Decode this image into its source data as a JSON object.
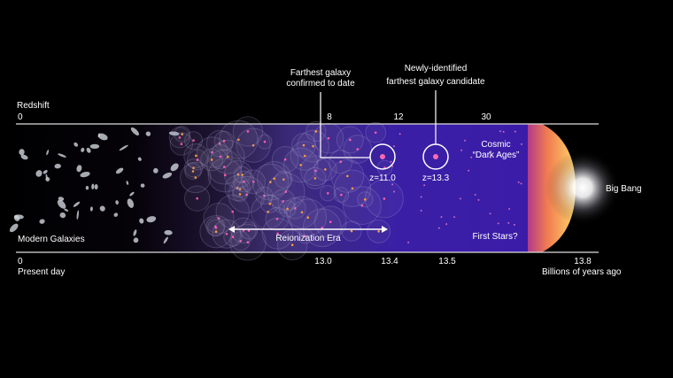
{
  "annotations": {
    "farthest_confirmed": {
      "lines": [
        "Farthest galaxy",
        "confirmed to date"
      ],
      "label": "z=11.0"
    },
    "new_candidate": {
      "lines": [
        "Newly-identified",
        "farthest galaxy candidate"
      ],
      "label": "z=13.3"
    }
  },
  "redshift_axis": {
    "title": "Redshift",
    "ticks": [
      "0",
      "8",
      "12",
      "30"
    ]
  },
  "time_axis": {
    "ticks": [
      "0",
      "13.0",
      "13.4",
      "13.5",
      "13.8"
    ],
    "start_label": "Present day",
    "end_label": "Billions of years ago"
  },
  "regions": {
    "modern": "Modern Galaxies",
    "reionization": "Reionization Era",
    "first_stars": "First Stars?",
    "dark_ages": [
      "Cosmic",
      "“Dark Ages”"
    ],
    "big_bang": "Big Bang"
  }
}
